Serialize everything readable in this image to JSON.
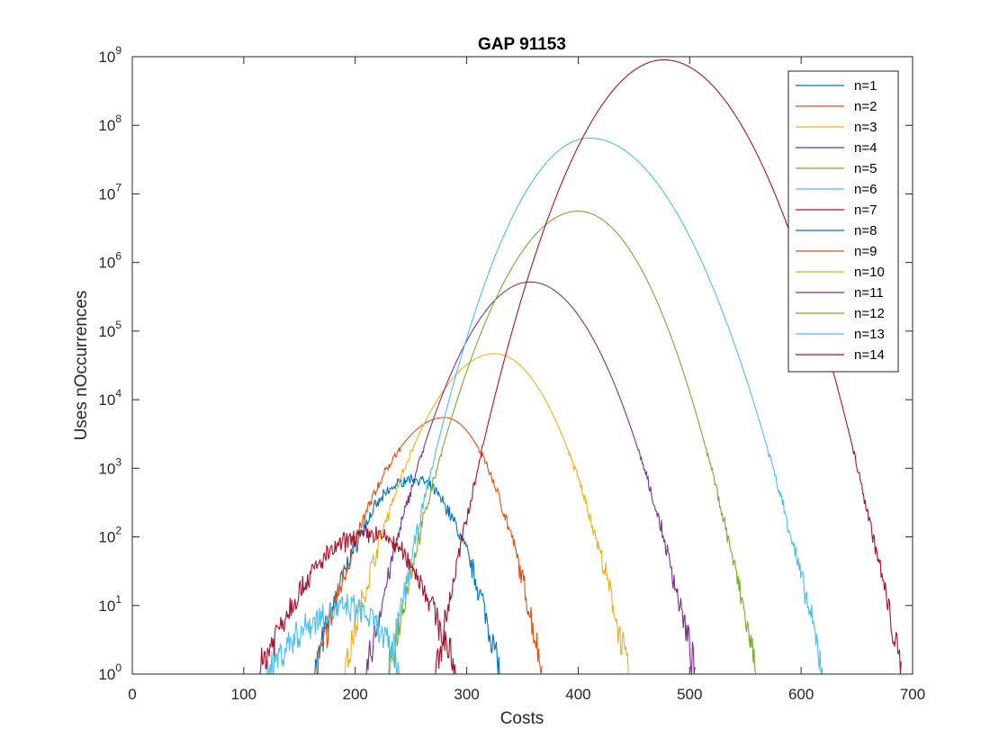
{
  "chart_data": {
    "type": "line",
    "title": "GAP 91153",
    "xlabel": "Costs",
    "ylabel": "Uses nOccurrences",
    "xlim": [
      0,
      700
    ],
    "ylim_exp": [
      0,
      9
    ],
    "yscale": "log",
    "xticks": [
      "0",
      "100",
      "200",
      "300",
      "400",
      "500",
      "600",
      "700"
    ],
    "yticks": [
      {
        "base": "10",
        "exp": "0"
      },
      {
        "base": "10",
        "exp": "1"
      },
      {
        "base": "10",
        "exp": "2"
      },
      {
        "base": "10",
        "exp": "3"
      },
      {
        "base": "10",
        "exp": "4"
      },
      {
        "base": "10",
        "exp": "5"
      },
      {
        "base": "10",
        "exp": "6"
      },
      {
        "base": "10",
        "exp": "7"
      },
      {
        "base": "10",
        "exp": "8"
      },
      {
        "base": "10",
        "exp": "9"
      }
    ],
    "grid": false,
    "legend_position": "top-right",
    "series": [
      {
        "name": "n=1",
        "color": "#0072BD",
        "peak_x": 252,
        "peak_y": 700,
        "x_start": 163,
        "x_end": 330
      },
      {
        "name": "n=2",
        "color": "#D95319",
        "peak_x": 280,
        "peak_y": 5500,
        "x_start": 165,
        "x_end": 368
      },
      {
        "name": "n=3",
        "color": "#EDB120",
        "peak_x": 325,
        "peak_y": 47000,
        "x_start": 190,
        "x_end": 445
      },
      {
        "name": "n=4",
        "color": "#7E2F8E",
        "peak_x": 357,
        "peak_y": 520000,
        "x_start": 210,
        "x_end": 505
      },
      {
        "name": "n=5",
        "color": "#77AC30",
        "peak_x": 400,
        "peak_y": 5600000,
        "x_start": 230,
        "x_end": 560
      },
      {
        "name": "n=6",
        "color": "#4DBEEE",
        "peak_x": 410,
        "peak_y": 65000000,
        "x_start": 230,
        "x_end": 620
      },
      {
        "name": "n=7",
        "color": "#A2142F",
        "peak_x": 477,
        "peak_y": 900000000,
        "x_start": 272,
        "x_end": 690
      },
      {
        "name": "n=8",
        "color": "#0072BD"
      },
      {
        "name": "n=9",
        "color": "#D95319"
      },
      {
        "name": "n=10",
        "color": "#EDB120"
      },
      {
        "name": "n=11",
        "color": "#7E2F8E"
      },
      {
        "name": "n=12",
        "color": "#77AC30"
      },
      {
        "name": "n=13",
        "color": "#4DBEEE",
        "peak_x": 195,
        "peak_y": 9,
        "x_start": 120,
        "x_end": 240
      },
      {
        "name": "n=14",
        "color": "#A2142F",
        "peak_x": 215,
        "peak_y": 110,
        "x_start": 113,
        "x_end": 290
      }
    ]
  }
}
